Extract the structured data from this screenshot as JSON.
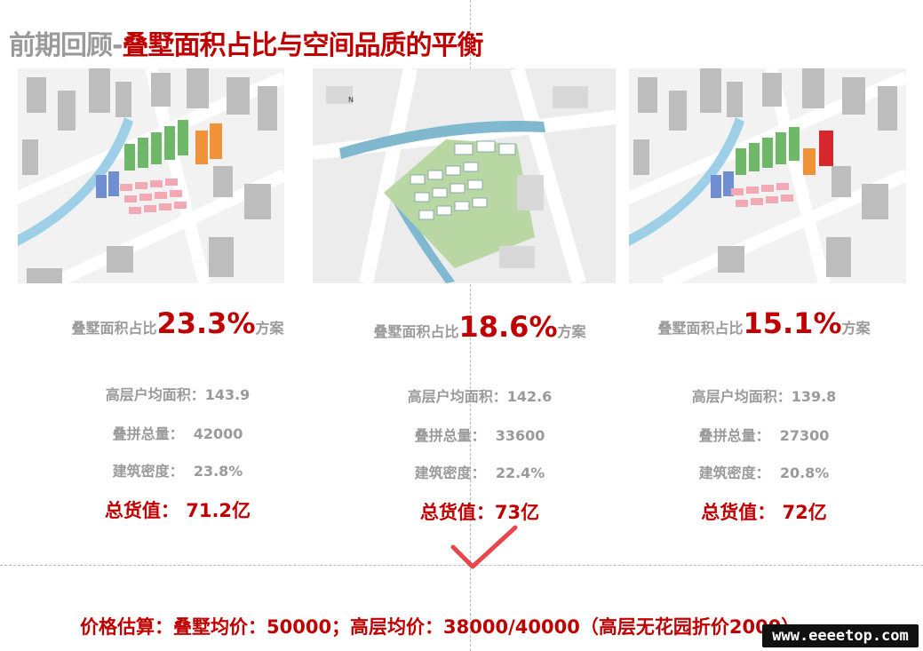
{
  "title": {
    "prefix": "前期回顾-",
    "main": "叠墅面积占比与空间品质的平衡"
  },
  "schemes": [
    {
      "ratio_prefix": "叠墅面积占比",
      "ratio_value": "23.3%",
      "ratio_suffix": "方案",
      "high_rise_label": "高层户均面积：",
      "high_rise_value": "143.9",
      "stack_label": "叠拼总量：",
      "stack_value": "42000",
      "density_label": "建筑密度：",
      "density_value": "23.8%",
      "total_label": "总货值：",
      "total_value": "71.2亿"
    },
    {
      "ratio_prefix": "叠墅面积占比",
      "ratio_value": "18.6%",
      "ratio_suffix": "方案",
      "high_rise_label": "高层户均面积：",
      "high_rise_value": "142.6",
      "stack_label": "叠拼总量：",
      "stack_value": "33600",
      "density_label": "建筑密度：",
      "density_value": "22.4%",
      "total_label": "总货值：",
      "total_value": "73亿"
    },
    {
      "ratio_prefix": "叠墅面积占比",
      "ratio_value": "15.1%",
      "ratio_suffix": "方案",
      "high_rise_label": "高层户均面积：",
      "high_rise_value": "139.8",
      "stack_label": "叠拼总量：",
      "stack_value": "27300",
      "density_label": "建筑密度：",
      "density_value": "20.8%",
      "total_label": "总货值：",
      "total_value": "72亿"
    }
  ],
  "footer": "价格估算：叠墅均价：50000；高层均价：38000/40000（高层无花园折价2000）",
  "watermark": "www.eeeetop.com",
  "colors": {
    "accent_red": "#c00000",
    "gray_text": "#9a9a9a"
  }
}
